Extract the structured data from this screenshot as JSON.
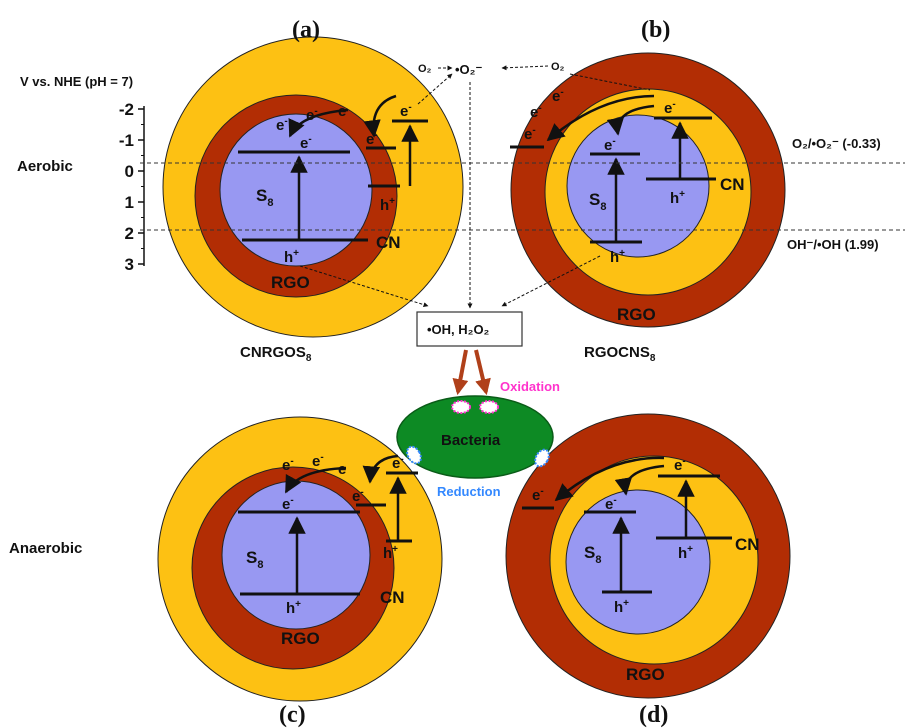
{
  "colors": {
    "cn": "#fdc113",
    "rgo": "#b22d04",
    "s8": "#9898f2",
    "bacteria": "#0d8a24",
    "oxidation": "#ff33cc",
    "reduction": "#3388ff",
    "arrow_red": "#b0401a"
  },
  "axis": {
    "title": "V vs. NHE (pH = 7)",
    "ticks": [
      "-2",
      "-1",
      "0",
      "1",
      "2",
      "3"
    ]
  },
  "conditions": {
    "aerobic": "Aerobic",
    "anaerobic": "Anaerobic"
  },
  "panels": {
    "a": {
      "letter": "(a)",
      "name_main": "CNRGOS",
      "name_sub": "8"
    },
    "b": {
      "letter": "(b)",
      "name_main": "RGOCNS",
      "name_sub": "8"
    },
    "c": {
      "letter": "(c)"
    },
    "d": {
      "letter": "(d)"
    }
  },
  "labels": {
    "s_main": "S",
    "s_sub": "8",
    "rgo": "RGO",
    "cn": "CN",
    "electron": "e",
    "electron_sup": "-",
    "hole": "h",
    "hole_sup": "+"
  },
  "potentials": {
    "superoxide": "O₂/•O₂⁻ (-0.33)",
    "hydroxyl": "OH⁻/•OH (1.99)"
  },
  "species": {
    "o2": "O₂",
    "superoxide": "•O₂⁻",
    "ros_box": "•OH, H₂O₂"
  },
  "bacteria": {
    "label": "Bacteria",
    "oxidation": "Oxidation",
    "reduction": "Reduction"
  }
}
